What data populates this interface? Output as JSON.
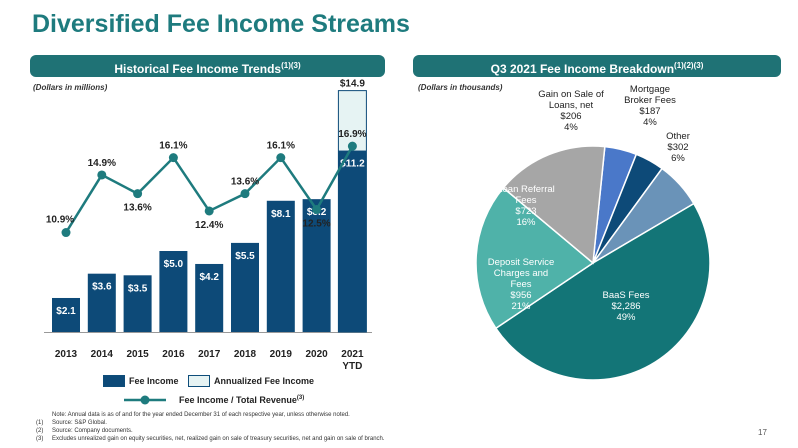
{
  "title": "Diversified Fee Income Streams",
  "left_header": {
    "text": "Historical Fee Income Trends",
    "sup": "(1)(3)"
  },
  "right_header": {
    "text": "Q3 2021 Fee Income Breakdown",
    "sup": "(1)(2)(3)"
  },
  "left_units": "(Dollars in millions)",
  "right_units": "(Dollars in thousands)",
  "colors": {
    "fee_income": "#0d4a78",
    "annualized": "#e6f3f3",
    "line": "#1e7b7e",
    "header_bg": "#1f7275"
  },
  "chart_data": [
    {
      "type": "bar",
      "title": "Historical Fee Income Trends",
      "categories": [
        "2013",
        "2014",
        "2015",
        "2016",
        "2017",
        "2018",
        "2019",
        "2020",
        "2021"
      ],
      "category_sublabels": [
        "",
        "",
        "",
        "",
        "",
        "",
        "",
        "",
        "YTD"
      ],
      "series": [
        {
          "name": "Fee Income",
          "values": [
            2.1,
            3.6,
            3.5,
            5.0,
            4.2,
            5.5,
            8.1,
            8.2,
            11.2
          ],
          "labels": [
            "$2.1",
            "$3.6",
            "$3.5",
            "$5.0",
            "$4.2",
            "$5.5",
            "$8.1",
            "$8.2",
            "$11.2"
          ]
        },
        {
          "name": "Annualized Fee Income",
          "values": [
            null,
            null,
            null,
            null,
            null,
            null,
            null,
            null,
            14.9
          ],
          "labels": [
            "",
            "",
            "",
            "",
            "",
            "",
            "",
            "",
            "$14.9"
          ]
        }
      ],
      "line_series": {
        "name": "Fee Income / Total Revenue",
        "name_sup": "(3)",
        "values": [
          10.9,
          14.9,
          13.6,
          16.1,
          12.4,
          13.6,
          16.1,
          12.5,
          16.9
        ],
        "labels": [
          "10.9%",
          "14.9%",
          "13.6%",
          "16.1%",
          "12.4%",
          "13.6%",
          "16.1%",
          "12.5%",
          "16.9%"
        ]
      },
      "ylim": [
        0,
        15
      ],
      "legend": [
        "Fee Income",
        "Annualized Fee Income",
        "Fee Income / Total Revenue"
      ]
    },
    {
      "type": "pie",
      "title": "Q3 2021 Fee Income Breakdown",
      "slices": [
        {
          "name": "BaaS Fees",
          "value": 2286,
          "amount": "$2,286",
          "pct": "49%",
          "color": "#137577",
          "label_lines": [
            "BaaS Fees",
            "$2,286",
            "49%"
          ]
        },
        {
          "name": "Deposit Service Charges and Fees",
          "value": 956,
          "amount": "$956",
          "pct": "21%",
          "color": "#4fb2a9",
          "label_lines": [
            "Deposit Service",
            "Charges and",
            "Fees",
            "$956",
            "21%"
          ]
        },
        {
          "name": "Loan Referral Fees",
          "value": 723,
          "amount": "$723",
          "pct": "16%",
          "color": "#a6a6a6",
          "label_lines": [
            "Loan Referral",
            "Fees",
            "$723",
            "16%"
          ]
        },
        {
          "name": "Gain on Sale of Loans, net",
          "value": 206,
          "amount": "$206",
          "pct": "4%",
          "color": "#4a78c9",
          "label_lines": [
            "Gain on Sale of",
            "Loans, net",
            "$206",
            "4%"
          ]
        },
        {
          "name": "Mortgage Broker Fees",
          "value": 187,
          "amount": "$187",
          "pct": "4%",
          "color": "#0d4a78",
          "label_lines": [
            "Mortgage",
            "Broker Fees",
            "$187",
            "4%"
          ]
        },
        {
          "name": "Other",
          "value": 302,
          "amount": "$302",
          "pct": "6%",
          "color": "#6a93b8",
          "label_lines": [
            "Other",
            "$302",
            "6%"
          ]
        }
      ]
    }
  ],
  "notes": [
    {
      "n": "",
      "text": "Note: Annual data is as of and for the year ended December 31 of each respective year, unless otherwise noted."
    },
    {
      "n": "(1)",
      "text": "Source: S&P Global."
    },
    {
      "n": "(2)",
      "text": "Source: Company documents."
    },
    {
      "n": "(3)",
      "text": "Excludes unrealized gain on equity securities, net, realized gain on sale of treasury securities, net and gain on sale of branch."
    }
  ],
  "page_number": "17"
}
